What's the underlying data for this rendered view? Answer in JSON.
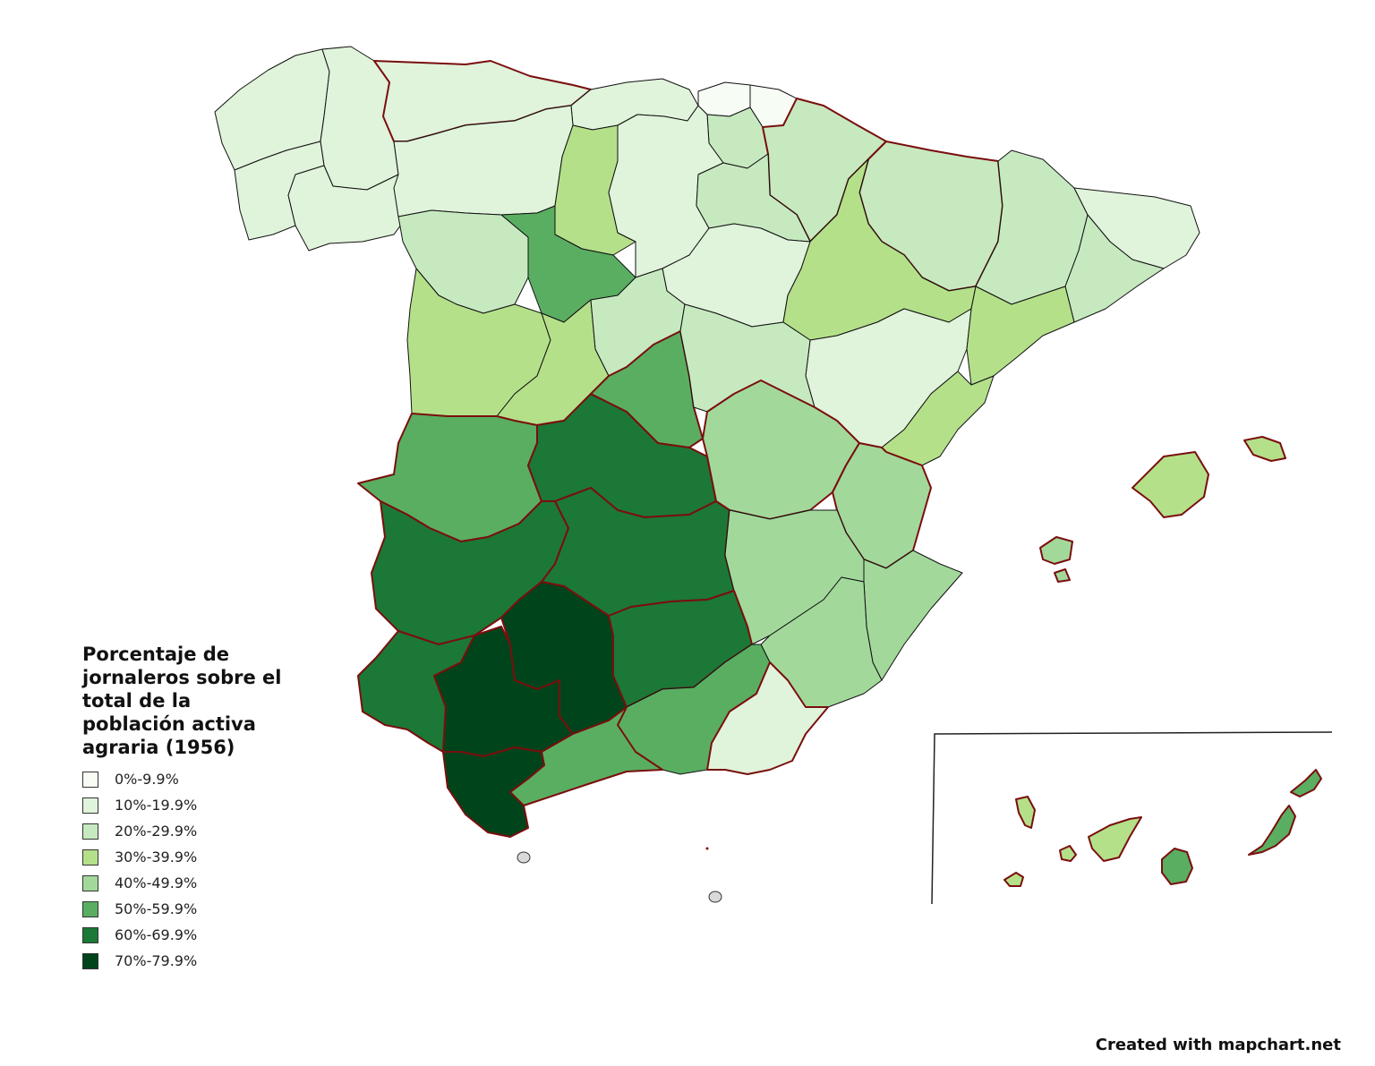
{
  "legend": {
    "title": "Porcentaje de jornaleros sobre el total de la población activa agraria (1956)",
    "classes": [
      {
        "label": "0%-9.9%",
        "color": "#f7fcf5"
      },
      {
        "label": "10%-19.9%",
        "color": "#e0f3db"
      },
      {
        "label": "20%-29.9%",
        "color": "#c7e9c0"
      },
      {
        "label": "30%-39.9%",
        "color": "#b4e08a"
      },
      {
        "label": "40%-49.9%",
        "color": "#a2d99b"
      },
      {
        "label": "50%-59.9%",
        "color": "#5aae61"
      },
      {
        "label": "60%-69.9%",
        "color": "#1b7837"
      },
      {
        "label": "70%-79.9%",
        "color": "#00441b"
      }
    ]
  },
  "credit": "Created with mapchart.net",
  "no_data_color": "#d9d9d9",
  "province_classes": {
    "a-coruna": 1,
    "lugo": 1,
    "pontevedra": 1,
    "ourense": 1,
    "asturias": 1,
    "cantabria": 1,
    "vizcaya": 0,
    "guipuzcoa": 0,
    "alava": 2,
    "navarra": 2,
    "leon": 1,
    "palencia": 3,
    "burgos": 1,
    "la-rioja": 2,
    "zamora": 2,
    "valladolid": 5,
    "soria": 1,
    "salamanca": 3,
    "avila": 3,
    "segovia": 2,
    "huesca": 2,
    "zaragoza": 3,
    "teruel": 1,
    "lleida": 2,
    "girona": 1,
    "barcelona": 2,
    "tarragona": 3,
    "caceres": 5,
    "toledo": 6,
    "madrid": 5,
    "guadalajara": 2,
    "cuenca": 4,
    "castellon": 3,
    "valencia": 4,
    "badajoz": 6,
    "ciudad-real": 6,
    "albacete": 4,
    "alicante": 4,
    "murcia": 4,
    "huelva": 6,
    "sevilla": 7,
    "cordoba": 7,
    "jaen": 6,
    "granada": 5,
    "almeria": 1,
    "cadiz": 7,
    "malaga": 5,
    "mallorca": 3,
    "menorca": 3,
    "ibiza": 4,
    "la-palma": 3,
    "tenerife": 3,
    "la-gomera": 3,
    "el-hierro": 3,
    "gran-canaria": 5,
    "fuerteventura": 5,
    "lanzarote": 5
  }
}
